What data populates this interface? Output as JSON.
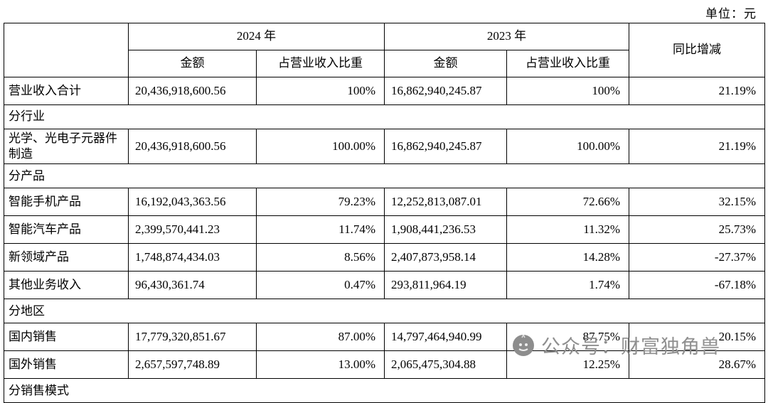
{
  "unit_label": "单位：元",
  "table": {
    "header": {
      "year_2024": "2024 年",
      "year_2023": "2023 年",
      "yoy": "同比增减",
      "amount_2024": "金额",
      "ratio_2024": "占营业收入比重",
      "amount_2023": "金额",
      "ratio_2023": "占营业收入比重"
    },
    "rows": [
      {
        "type": "data",
        "label": "营业收入合计",
        "amount_2024": "20,436,918,600.56",
        "ratio_2024": "100%",
        "amount_2023": "16,862,940,245.87",
        "ratio_2023": "100%",
        "yoy": "21.19%"
      },
      {
        "type": "section",
        "label": "分行业"
      },
      {
        "type": "data",
        "label": "光学、光电子元器件制造",
        "amount_2024": "20,436,918,600.56",
        "ratio_2024": "100.00%",
        "amount_2023": "16,862,940,245.87",
        "ratio_2023": "100.00%",
        "yoy": "21.19%"
      },
      {
        "type": "section",
        "label": "分产品"
      },
      {
        "type": "data",
        "label": "智能手机产品",
        "amount_2024": "16,192,043,363.56",
        "ratio_2024": "79.23%",
        "amount_2023": "12,252,813,087.01",
        "ratio_2023": "72.66%",
        "yoy": "32.15%"
      },
      {
        "type": "data",
        "label": "智能汽车产品",
        "amount_2024": "2,399,570,441.23",
        "ratio_2024": "11.74%",
        "amount_2023": "1,908,441,236.53",
        "ratio_2023": "11.32%",
        "yoy": "25.73%"
      },
      {
        "type": "data",
        "label": "新领域产品",
        "amount_2024": "1,748,874,434.03",
        "ratio_2024": "8.56%",
        "amount_2023": "2,407,873,958.14",
        "ratio_2023": "14.28%",
        "yoy": "-27.37%"
      },
      {
        "type": "data",
        "label": "其他业务收入",
        "amount_2024": "96,430,361.74",
        "ratio_2024": "0.47%",
        "amount_2023": "293,811,964.19",
        "ratio_2023": "1.74%",
        "yoy": "-67.18%"
      },
      {
        "type": "section",
        "label": "分地区"
      },
      {
        "type": "data",
        "label": "国内销售",
        "amount_2024": "17,779,320,851.67",
        "ratio_2024": "87.00%",
        "amount_2023": "14,797,464,940.99",
        "ratio_2023": "87.75%",
        "yoy": "20.15%"
      },
      {
        "type": "data",
        "label": "国外销售",
        "amount_2024": "2,657,597,748.89",
        "ratio_2024": "13.00%",
        "amount_2023": "2,065,475,304.88",
        "ratio_2023": "12.25%",
        "yoy": "28.67%"
      },
      {
        "type": "section",
        "label": "分销售模式"
      }
    ]
  },
  "watermark": {
    "text": "公众号：财富独角兽"
  }
}
